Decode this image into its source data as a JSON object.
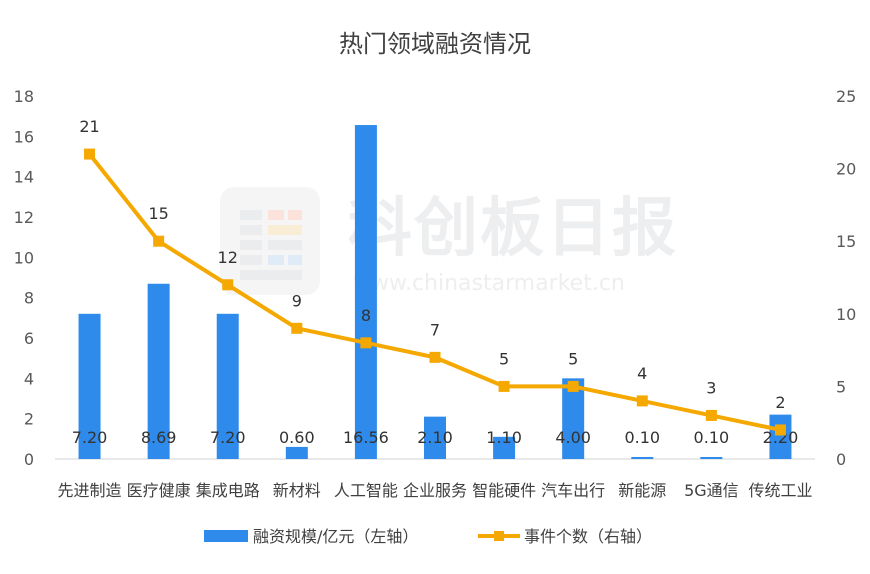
{
  "chart_data": {
    "type": "bar+line",
    "title": "热门领域融资情况",
    "categories": [
      "先进制造",
      "医疗健康",
      "集成电路",
      "新材料",
      "人工智能",
      "企业服务",
      "智能硬件",
      "汽车出行",
      "新能源",
      "5G通信",
      "传统工业"
    ],
    "series": [
      {
        "name": "融资规模/亿元（左轴）",
        "type": "bar",
        "axis": "left",
        "values": [
          7.2,
          8.69,
          7.2,
          0.6,
          16.56,
          2.1,
          1.1,
          4.0,
          0.1,
          0.1,
          2.2
        ],
        "labels": [
          "7.20",
          "8.69",
          "7.20",
          "0.60",
          "16.56",
          "2.10",
          "1.10",
          "4.00",
          "0.10",
          "0.10",
          "2.20"
        ],
        "color": "#2E8BEB"
      },
      {
        "name": "事件个数（右轴）",
        "type": "line",
        "axis": "right",
        "values": [
          21,
          15,
          12,
          9,
          8,
          7,
          5,
          5,
          4,
          3,
          2
        ],
        "labels": [
          "21",
          "15",
          "12",
          "9",
          "8",
          "7",
          "5",
          "5",
          "4",
          "3",
          "2"
        ],
        "color": "#F5A800"
      }
    ],
    "y_left": {
      "min": 0,
      "max": 18,
      "ticks": [
        "0",
        "2",
        "4",
        "6",
        "8",
        "10",
        "12",
        "14",
        "16",
        "18"
      ]
    },
    "y_right": {
      "min": 0,
      "max": 25,
      "ticks": [
        "0",
        "5",
        "10",
        "15",
        "20",
        "25"
      ]
    },
    "grid": false,
    "legend_position": "bottom"
  },
  "watermark": {
    "brand": "科创板日报",
    "url": "www.chinastarmarket.cn"
  }
}
